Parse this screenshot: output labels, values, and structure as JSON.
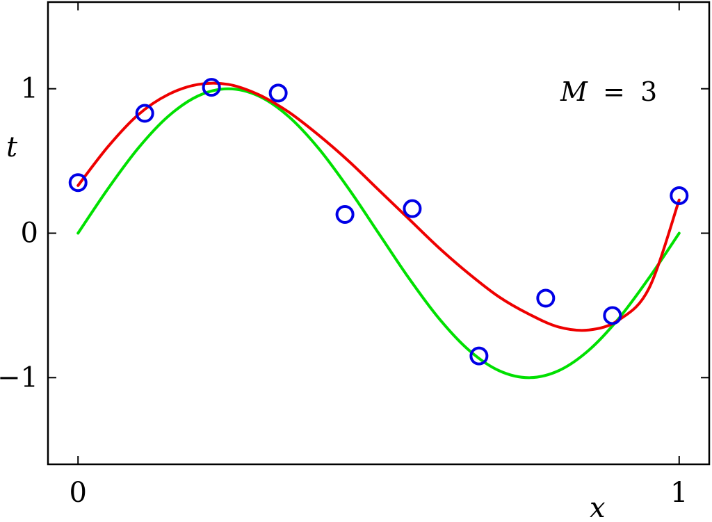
{
  "chart_data": {
    "type": "line",
    "xlabel": "x",
    "ylabel": "t",
    "xlim": [
      -0.05,
      1.05
    ],
    "ylim": [
      -1.6,
      1.6
    ],
    "xticks": [
      0,
      1
    ],
    "xtick_labels": [
      "0",
      "1"
    ],
    "yticks": [
      -1,
      0,
      1
    ],
    "ytick_labels": [
      "−1",
      "0",
      "1"
    ],
    "grid": false,
    "annotation": {
      "variable": "M",
      "equals": "=",
      "value": "3"
    },
    "colors": {
      "true_curve": "#00e000",
      "fit_curve": "#ee0000",
      "points": "#0000e6",
      "axes": "#000000"
    },
    "series": [
      {
        "type": "line",
        "color": "#00e000",
        "x": [
          0,
          0.05,
          0.1,
          0.15,
          0.2,
          0.25,
          0.3,
          0.35,
          0.4,
          0.45,
          0.5,
          0.55,
          0.6,
          0.65,
          0.7,
          0.75,
          0.8,
          0.85,
          0.9,
          0.95,
          1
        ],
        "y": [
          0,
          0.309,
          0.588,
          0.809,
          0.951,
          1,
          0.951,
          0.809,
          0.588,
          0.309,
          0,
          -0.309,
          -0.588,
          -0.809,
          -0.951,
          -1,
          -0.951,
          -0.809,
          -0.588,
          -0.309,
          0
        ]
      },
      {
        "type": "line",
        "color": "#ee0000",
        "x": [
          0,
          0.05,
          0.1,
          0.15,
          0.2,
          0.25,
          0.3,
          0.35,
          0.4,
          0.45,
          0.5,
          0.55,
          0.6,
          0.65,
          0.7,
          0.75,
          0.8,
          0.85,
          0.9,
          0.95,
          1
        ],
        "y": [
          0.33,
          0.6,
          0.82,
          0.96,
          1.03,
          1.03,
          0.96,
          0.84,
          0.68,
          0.5,
          0.3,
          0.1,
          -0.1,
          -0.28,
          -0.44,
          -0.56,
          -0.65,
          -0.67,
          -0.6,
          -0.38,
          0.23
        ]
      },
      {
        "type": "scatter",
        "color": "#0000e6",
        "x": [
          0,
          0.111,
          0.222,
          0.333,
          0.444,
          0.556,
          0.667,
          0.778,
          0.889,
          1
        ],
        "y": [
          0.35,
          0.83,
          1.01,
          0.97,
          0.13,
          0.17,
          -0.85,
          -0.45,
          -0.57,
          0.26
        ]
      }
    ]
  }
}
